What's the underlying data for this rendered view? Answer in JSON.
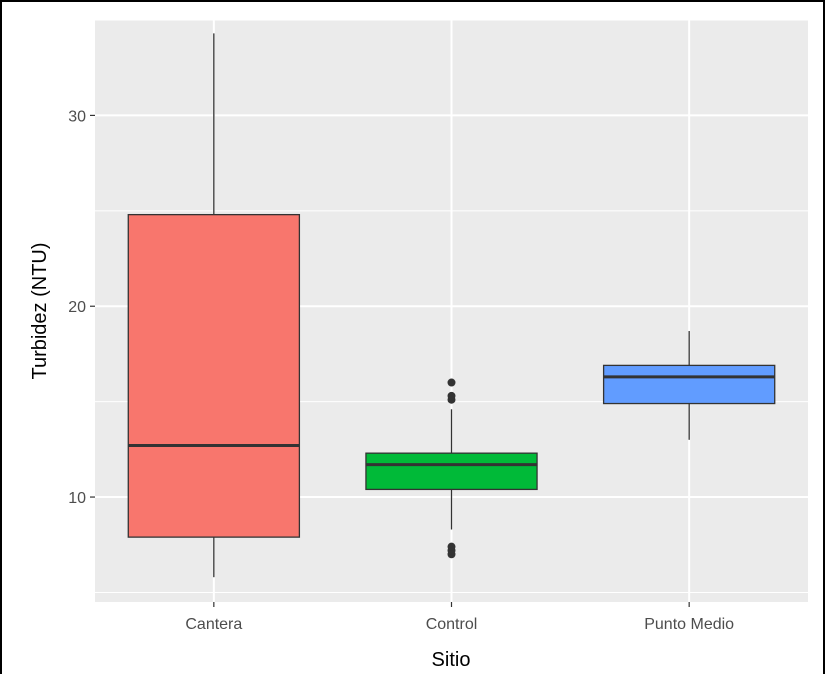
{
  "chart_data": {
    "type": "boxplot",
    "xlabel": "Sitio",
    "ylabel": "Turbidez (NTU)",
    "ylim": [
      4.5,
      35
    ],
    "y_ticks": [
      10,
      20,
      30
    ],
    "y_minor_ticks": [
      5,
      15,
      25,
      35
    ],
    "grid": true,
    "legend": "none",
    "categories": [
      "Cantera",
      "Control",
      "Punto Medio"
    ],
    "boxes": [
      {
        "category": "Cantera",
        "color": "#F8766D",
        "whisker_low": 5.8,
        "q1": 7.9,
        "median": 12.7,
        "q3": 24.8,
        "whisker_high": 34.3,
        "outliers": []
      },
      {
        "category": "Control",
        "color": "#00BA38",
        "whisker_low": 8.3,
        "q1": 10.4,
        "median": 11.7,
        "q3": 12.3,
        "whisker_high": 14.6,
        "outliers": [
          7.0,
          7.2,
          7.4,
          15.1,
          15.3,
          16.0
        ]
      },
      {
        "category": "Punto Medio",
        "color": "#619CFF",
        "whisker_low": 13.0,
        "q1": 14.9,
        "median": 16.3,
        "q3": 16.9,
        "whisker_high": 18.7,
        "outliers": []
      }
    ]
  }
}
